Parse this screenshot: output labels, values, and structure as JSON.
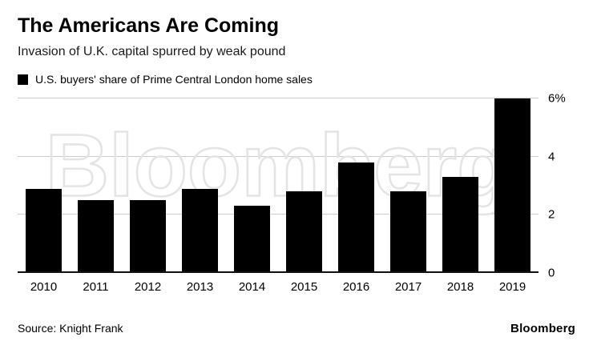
{
  "chart_data": {
    "type": "bar",
    "title": "The Americans Are Coming",
    "subtitle": "Invasion of U.K. capital spurred by weak pound",
    "legend": "U.S. buyers' share of Prime Central London home sales",
    "categories": [
      "2010",
      "2011",
      "2012",
      "2013",
      "2014",
      "2015",
      "2016",
      "2017",
      "2018",
      "2019"
    ],
    "values": [
      2.9,
      2.5,
      2.5,
      2.9,
      2.3,
      2.8,
      3.8,
      2.8,
      3.3,
      6.0
    ],
    "xlabel": "",
    "ylabel": "",
    "ylim": [
      0,
      6
    ],
    "yticks": [
      {
        "value": 0,
        "label": "0"
      },
      {
        "value": 2,
        "label": "2"
      },
      {
        "value": 4,
        "label": "4"
      },
      {
        "value": 6,
        "label": "6%"
      }
    ],
    "grid": true,
    "legend_position": "top-left",
    "bar_color": "#000000"
  },
  "watermark": "Bloomberg",
  "footer": {
    "source": "Source: Knight Frank",
    "logo": "Bloomberg"
  }
}
